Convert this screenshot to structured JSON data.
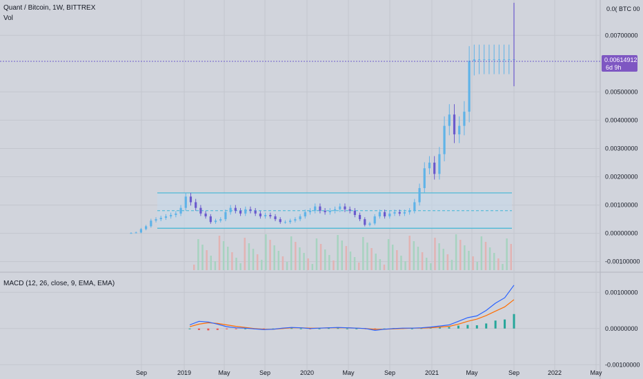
{
  "header": {
    "symbol_line": "Quant / Bitcoin, 1W, BITTREX",
    "volume_label": "Vol"
  },
  "price_tag": {
    "value": "0.00614912",
    "countdown": "6d 9h",
    "top_axis_label": "0.0( BTC 00"
  },
  "macd_label": "MACD (12, 26, close, 9, EMA, EMA)",
  "colors": {
    "background": "#d1d4dc",
    "grid": "#c3c6ce",
    "candle_up": "#5fb3e8",
    "candle_down": "#6a5acd",
    "range_box_fill": "#c7d8ea",
    "range_line": "#3fb6d6",
    "macd_line": "#2962ff",
    "signal_line": "#ff6d00",
    "hist_up": "#26a69a",
    "hist_down": "#ef5350",
    "price_tag_bg": "#7e57c2",
    "volume_up": "#a7d3c0",
    "volume_down": "#e2b3b3"
  },
  "chart_data": [
    {
      "type": "line",
      "name": "price",
      "y_tick_labels": [
        "0.00700000",
        "0.00500000",
        "0.00400000",
        "0.00300000",
        "0.00200000",
        "0.00100000",
        "0.00000000",
        "-0.00100000"
      ],
      "y_ticks": [
        0.007,
        0.005,
        0.004,
        0.003,
        0.002,
        0.001,
        0.0,
        -0.001
      ],
      "ylim": [
        -0.0013,
        0.0082
      ],
      "x_tick_labels": [
        "Sep",
        "2019",
        "May",
        "Sep",
        "2020",
        "May",
        "Sep",
        "2021",
        "May",
        "Sep",
        "2022",
        "May"
      ],
      "last_value": 0.00614912,
      "range_box": {
        "top": 0.00143,
        "mid": 0.0008,
        "bottom": 0.00018
      },
      "series": [
        {
          "x": [
            0,
            2,
            4,
            6,
            8,
            10,
            12,
            14,
            16,
            18,
            20,
            22,
            24,
            26,
            28,
            30,
            32,
            34,
            36,
            38,
            40,
            42,
            44,
            46,
            48,
            50,
            52,
            54,
            56,
            58,
            60,
            62,
            64,
            66,
            68,
            70,
            72,
            74,
            76,
            78,
            80,
            82,
            84,
            86,
            88,
            90,
            92,
            94,
            96,
            98,
            100,
            102,
            104,
            106,
            108,
            110,
            112,
            114,
            116,
            118,
            120,
            122,
            124,
            126,
            128,
            130,
            132,
            134,
            136,
            138,
            140,
            142,
            144,
            146,
            148,
            150,
            152,
            154
          ],
          "values": [
            1e-05,
            3e-05,
            0.00015,
            0.00025,
            0.00045,
            0.0005,
            0.00055,
            0.0006,
            0.00065,
            0.0007,
            0.0009,
            0.0013,
            0.0011,
            0.0009,
            0.0007,
            0.0006,
            0.0004,
            0.00045,
            0.0005,
            0.00075,
            0.0009,
            0.0008,
            0.0007,
            0.00085,
            0.0008,
            0.0007,
            0.0006,
            0.00065,
            0.0006,
            0.0005,
            0.0004,
            0.0004,
            0.00045,
            0.0005,
            0.0006,
            0.00075,
            0.0008,
            0.00095,
            0.0008,
            0.00075,
            0.0008,
            0.00085,
            0.00095,
            0.00085,
            0.0008,
            0.00065,
            0.0005,
            0.0003,
            0.00035,
            0.0006,
            0.00075,
            0.0006,
            0.0007,
            0.00075,
            0.0007,
            0.00075,
            0.0008,
            0.0011,
            0.0016,
            0.0023,
            0.0025,
            0.0021,
            0.0028,
            0.0038,
            0.0042,
            0.0035,
            0.0038,
            0.0043,
            0.0061,
            0.00615,
            0.00615,
            0.00615,
            0.00615,
            0.00615,
            0.00615,
            0.00615,
            0.00615,
            0.00615
          ]
        }
      ]
    },
    {
      "type": "line",
      "name": "MACD",
      "y_tick_labels": [
        "0.00100000",
        "0.00000000",
        "-0.00100000"
      ],
      "y_ticks": [
        0.001,
        0.0,
        -0.001
      ],
      "ylim": [
        -0.0013,
        0.0015
      ],
      "series": [
        {
          "name": "macd",
          "values": [
            0.0001,
            0.0002,
            0.00018,
            0.00012,
            5e-05,
            2e-05,
            1e-05,
            -1e-05,
            -3e-05,
            -2e-05,
            1e-05,
            3e-05,
            2e-05,
            0.0,
            1e-05,
            2e-05,
            3e-05,
            2e-05,
            1e-05,
            0.0,
            -5e-05,
            -2e-05,
            0.0,
            1e-05,
            1e-05,
            2e-05,
            4e-05,
            7e-05,
            0.0001,
            0.0002,
            0.0003,
            0.00035,
            0.0005,
            0.0007,
            0.00085,
            0.0012
          ]
        },
        {
          "name": "signal",
          "values": [
            5e-05,
            0.00012,
            0.00016,
            0.00014,
            0.0001,
            6e-05,
            3e-05,
            0.0,
            -2e-05,
            -2e-05,
            0.0,
            2e-05,
            2e-05,
            1e-05,
            1e-05,
            2e-05,
            2e-05,
            2e-05,
            1e-05,
            0.0,
            -2e-05,
            -2e-05,
            -1e-05,
            0.0,
            1e-05,
            1e-05,
            2e-05,
            4e-05,
            6e-05,
            0.00012,
            0.0002,
            0.00026,
            0.00036,
            0.00048,
            0.0006,
            0.0008
          ]
        }
      ],
      "histogram": [
        0.0,
        -4e-05,
        -5e-05,
        -4e-05,
        -2e-05,
        -1e-05,
        0.0,
        -1e-05,
        -1e-05,
        0.0,
        1e-05,
        1e-05,
        0.0,
        -1e-05,
        0.0,
        1e-05,
        1e-05,
        0.0,
        0.0,
        -1e-05,
        -3e-05,
        0.0,
        1e-05,
        1e-05,
        0.0,
        1e-05,
        2e-05,
        3e-05,
        4e-05,
        8e-05,
        0.0001,
        9e-05,
        0.00014,
        0.00022,
        0.00025,
        0.0004
      ]
    }
  ]
}
